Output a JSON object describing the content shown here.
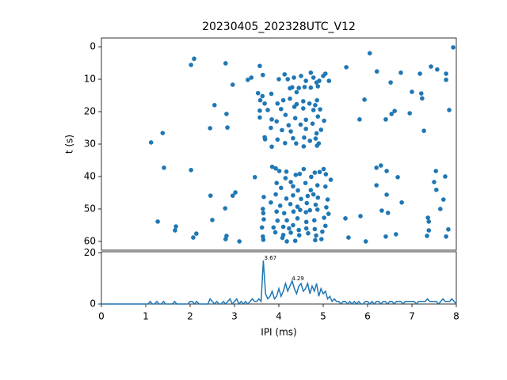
{
  "chart_data": [
    {
      "type": "scatter",
      "title": "20230405_202328UTC_V12",
      "ylabel": "t (s)",
      "color": "#1f77b4",
      "xlim": [
        0,
        8
      ],
      "ylim": [
        -2.7,
        62.7
      ],
      "invert_y": true,
      "yticks": [
        0,
        10,
        20,
        30,
        40,
        50,
        60
      ],
      "x": [
        7.93,
        6.05,
        2.09,
        2.02,
        2.8,
        3.57,
        5.52,
        7.43,
        7.57,
        6.21,
        6.75,
        7.18,
        7.77,
        7.77,
        3.3,
        3.38,
        2.96,
        6.52,
        7.0,
        7.21,
        7.23,
        5.93,
        7.84,
        2.55,
        2.82,
        6.95,
        6.54,
        6.61,
        6.41,
        5.82,
        7.27,
        2.45,
        2.84,
        1.12,
        1.38,
        1.41,
        2.02,
        6.2,
        6.3,
        6.43,
        7.54,
        7.75,
        3.46,
        6.68,
        6.2,
        7.5,
        7.55,
        3.02,
        2.96,
        2.46,
        6.43,
        7.71,
        6.77,
        2.79,
        6.32,
        6.46,
        7.64,
        2.5,
        1.27,
        1.68,
        1.66,
        2.14,
        2.07,
        2.82,
        2.8,
        3.11,
        5.57,
        5.96,
        6.41,
        6.64,
        7.36,
        7.38,
        7.38,
        7.34,
        7.82,
        7.77,
        5.5,
        5.84,
        3.64,
        4.0,
        4.13,
        4.2,
        4.34,
        4.5,
        4.61,
        4.72,
        4.78,
        4.91,
        5.0,
        5.13,
        5.05,
        4.85,
        4.3,
        4.45,
        4.58,
        4.72,
        4.88,
        4.4,
        4.25,
        3.53,
        3.63,
        3.83,
        3.58,
        3.68,
        3.97,
        4.1,
        4.25,
        4.4,
        4.55,
        4.69,
        4.86,
        4.82,
        3.57,
        3.75,
        4.05,
        4.35,
        4.55,
        4.78,
        4.93,
        3.57,
        3.84,
        3.95,
        4.15,
        4.22,
        4.37,
        4.49,
        4.61,
        4.76,
        4.88,
        5.02,
        3.82,
        4.07,
        4.27,
        4.61,
        4.85,
        4.95,
        3.68,
        3.69,
        3.97,
        4.14,
        4.32,
        4.39,
        4.57,
        4.7,
        4.83,
        4.9,
        3.84,
        4.56,
        4.86,
        3.85,
        3.93,
        4.01,
        4.17,
        4.38,
        4.56,
        4.47,
        4.73,
        4.81,
        4.92,
        5.06,
        5.01,
        4.15,
        3.95,
        4.27,
        4.32,
        4.6,
        4.87,
        5.05,
        5.17,
        4.43,
        4.72,
        4.78,
        4.05,
        3.66,
        3.93,
        4.17,
        4.32,
        4.5,
        4.65,
        4.88,
        5.1,
        3.82,
        4.03,
        4.26,
        4.42,
        4.63,
        4.83,
        5.07,
        3.64,
        3.95,
        4.12,
        4.33,
        4.48,
        4.61,
        4.7,
        4.87,
        5.12,
        3.65,
        3.66,
        3.97,
        4.18,
        4.42,
        4.62,
        4.8,
        5.02,
        3.62,
        3.88,
        4.1,
        4.23,
        4.32,
        4.45,
        4.62,
        4.81,
        5.05,
        3.92,
        4.1,
        4.27,
        4.46,
        4.66,
        4.84,
        4.98,
        3.64,
        3.65,
        4.08,
        4.37,
        4.82,
        4.96,
        4.18
      ],
      "values": [
        0.2,
        2,
        3.7,
        5.6,
        5.1,
        5.9,
        6.3,
        6.1,
        7,
        7.6,
        8,
        8.3,
        8.3,
        10.2,
        10.2,
        9.5,
        11.7,
        11,
        13.9,
        14.4,
        15.9,
        16.3,
        19.5,
        18,
        20.7,
        20.5,
        20.7,
        19.8,
        22.4,
        22.4,
        25.9,
        25.1,
        24.9,
        29.5,
        26.6,
        37.3,
        38,
        37.3,
        36.6,
        38.3,
        38.3,
        40,
        40.2,
        40.2,
        42.7,
        41.7,
        44.1,
        44.9,
        45.9,
        45.9,
        45.6,
        47.1,
        48,
        49.8,
        50.5,
        51.2,
        50,
        53.4,
        53.9,
        55.4,
        56.6,
        57.6,
        58.8,
        58.3,
        59.3,
        60,
        58.8,
        60,
        58.5,
        57.8,
        52.7,
        53.9,
        56.6,
        58.3,
        56.3,
        58.5,
        52.9,
        52.2,
        8.7,
        10,
        8.5,
        10,
        9.5,
        9,
        10.5,
        8,
        9.5,
        10.5,
        9,
        10.5,
        8.3,
        11,
        12.5,
        12.7,
        12.4,
        12.6,
        12.2,
        14,
        12.8,
        14.3,
        15.2,
        14.5,
        16.5,
        17.5,
        17.5,
        16.5,
        16,
        17.7,
        16.8,
        17.5,
        16.5,
        18,
        19.7,
        19.5,
        19.2,
        18.5,
        19,
        19.5,
        19.3,
        21.8,
        22.4,
        23,
        21,
        24.2,
        22,
        24,
        22.5,
        23.7,
        21.5,
        22.8,
        25,
        25.7,
        26.1,
        25.3,
        26.7,
        25.6,
        27.9,
        28.5,
        28.6,
        29.7,
        28.2,
        29.8,
        28,
        29,
        28.3,
        29.8,
        30.8,
        30.7,
        30.5,
        37,
        37.5,
        38.3,
        38.5,
        39.5,
        37.7,
        39.2,
        40.1,
        38.8,
        38.6,
        39.3,
        37.7,
        40.5,
        42,
        41.7,
        43,
        42,
        42.7,
        43.1,
        41,
        44.3,
        44.2,
        45.5,
        43.5,
        46.3,
        45.5,
        46.8,
        45.8,
        46.9,
        46,
        46.5,
        47.1,
        48,
        49,
        48.5,
        49.3,
        48.2,
        48.7,
        49.5,
        50,
        50.8,
        51.3,
        50.8,
        50.3,
        51,
        50.4,
        50.2,
        51.5,
        51.3,
        53.2,
        53.6,
        53.5,
        52.9,
        54,
        53.5,
        52.7,
        55.7,
        55.7,
        55.5,
        56,
        55,
        56.5,
        56,
        56.2,
        55.2,
        57.2,
        58,
        57.3,
        58.1,
        57.5,
        58.2,
        57,
        58.5,
        59.5,
        58.9,
        59.8,
        59.6,
        59.3,
        60
      ]
    },
    {
      "type": "line",
      "xlabel": "IPI (ms)",
      "color": "#1f77b4",
      "xlim": [
        0,
        8
      ],
      "ylim": [
        0,
        20.4
      ],
      "xticks": [
        0,
        1,
        2,
        3,
        4,
        5,
        6,
        7,
        8
      ],
      "yticks": [
        0,
        20
      ],
      "x": [
        0,
        0.05,
        0.1,
        0.15,
        0.2,
        0.25,
        0.3,
        0.35,
        0.4,
        0.45,
        0.5,
        0.55,
        0.6,
        0.65,
        0.7,
        0.75,
        0.8,
        0.85,
        0.9,
        0.95,
        1,
        1.05,
        1.1,
        1.15,
        1.2,
        1.25,
        1.3,
        1.35,
        1.4,
        1.45,
        1.5,
        1.55,
        1.6,
        1.65,
        1.7,
        1.75,
        1.8,
        1.85,
        1.9,
        1.95,
        2,
        2.05,
        2.1,
        2.15,
        2.2,
        2.25,
        2.3,
        2.35,
        2.4,
        2.45,
        2.5,
        2.55,
        2.6,
        2.65,
        2.7,
        2.75,
        2.8,
        2.85,
        2.9,
        2.95,
        3,
        3.05,
        3.1,
        3.15,
        3.2,
        3.25,
        3.3,
        3.35,
        3.4,
        3.45,
        3.5,
        3.55,
        3.6,
        3.65,
        3.7,
        3.75,
        3.8,
        3.85,
        3.9,
        3.95,
        4,
        4.05,
        4.1,
        4.15,
        4.2,
        4.25,
        4.3,
        4.35,
        4.4,
        4.45,
        4.5,
        4.55,
        4.6,
        4.65,
        4.7,
        4.75,
        4.8,
        4.85,
        4.9,
        4.95,
        5,
        5.05,
        5.1,
        5.15,
        5.2,
        5.25,
        5.3,
        5.35,
        5.4,
        5.45,
        5.5,
        5.55,
        5.6,
        5.65,
        5.7,
        5.75,
        5.8,
        5.85,
        5.9,
        5.95,
        6,
        6.05,
        6.1,
        6.15,
        6.2,
        6.25,
        6.3,
        6.35,
        6.4,
        6.45,
        6.5,
        6.55,
        6.6,
        6.65,
        6.7,
        6.75,
        6.8,
        6.85,
        6.9,
        6.95,
        7,
        7.05,
        7.1,
        7.15,
        7.2,
        7.25,
        7.3,
        7.35,
        7.4,
        7.45,
        7.5,
        7.55,
        7.6,
        7.65,
        7.7,
        7.75,
        7.8,
        7.85,
        7.9,
        7.95,
        8
      ],
      "values": [
        0,
        0,
        0,
        0,
        0,
        0,
        0,
        0,
        0,
        0,
        0,
        0,
        0,
        0,
        0,
        0,
        0,
        0,
        0,
        0,
        0,
        0,
        1,
        0,
        0,
        1,
        0,
        0,
        1,
        0,
        0,
        0,
        0,
        1,
        0,
        0,
        0,
        0,
        0,
        0,
        1,
        1,
        0,
        1,
        0,
        0,
        0,
        0,
        0,
        2,
        1,
        0,
        1,
        0,
        0,
        1,
        0,
        1,
        2,
        0,
        1,
        2,
        0,
        1,
        0,
        1,
        0,
        1,
        2,
        1,
        1,
        2,
        1,
        17,
        4,
        2,
        3,
        5,
        2,
        3,
        6,
        3,
        5,
        8,
        5,
        7,
        9,
        6,
        4,
        7,
        8,
        5,
        6,
        8,
        4,
        7,
        5,
        8,
        3,
        6,
        4,
        5,
        2,
        3,
        1,
        2,
        1,
        1,
        0,
        1,
        1,
        0,
        1,
        0,
        1,
        0,
        1,
        0,
        0,
        1,
        1,
        0,
        1,
        0,
        1,
        1,
        0,
        1,
        1,
        0,
        1,
        1,
        0,
        1,
        1,
        1,
        0,
        1,
        1,
        1,
        1,
        1,
        0,
        1,
        1,
        1,
        1,
        2,
        1,
        1,
        1,
        1,
        0,
        1,
        2,
        1,
        1,
        1,
        2,
        1,
        0
      ],
      "annotations": [
        {
          "text": "3.67",
          "x": 3.67,
          "y": 17
        },
        {
          "text": "4.29",
          "x": 4.29,
          "y": 9
        }
      ]
    }
  ]
}
